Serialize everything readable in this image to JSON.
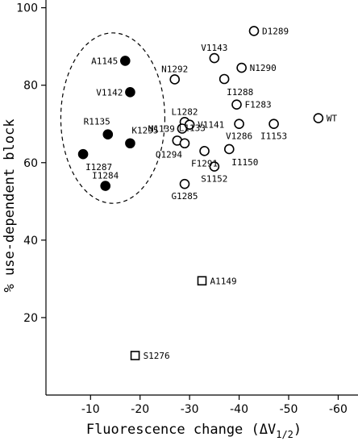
{
  "chart_data": {
    "type": "scatter",
    "title": "",
    "xlabel": "Fluorescence change (ΔV",
    "xlabel_sub": "1/2",
    "xlabel_close": ")",
    "ylabel": "% use-dependent block",
    "xlim": [
      -1,
      -64
    ],
    "ylim": [
      0,
      102
    ],
    "x_axis_reversed": true,
    "xticks": [
      -10,
      -20,
      -30,
      -40,
      -50,
      -60
    ],
    "yticks": [
      20,
      40,
      60,
      80,
      100
    ],
    "grid": false,
    "legend": "none",
    "marker_styles": {
      "filled-circle": {
        "fill": "#000000",
        "stroke": "#000000"
      },
      "open-circle": {
        "fill": "#ffffff",
        "stroke": "#000000"
      },
      "open-square": {
        "fill": "#ffffff",
        "stroke": "#000000"
      }
    },
    "highlight_region": {
      "shape": "ellipse",
      "style": "dashed",
      "center": [
        -14.5,
        71.5
      ],
      "radius_x": 10.5,
      "radius_y": 22
    },
    "points": [
      {
        "label": "A1145",
        "x": -17,
        "y": 86.3,
        "marker": "filled-circle",
        "label_side": "left"
      },
      {
        "label": "V1142",
        "x": -18,
        "y": 78.2,
        "marker": "filled-circle",
        "label_side": "left"
      },
      {
        "label": "R1135",
        "x": -13.5,
        "y": 67.3,
        "marker": "filled-circle",
        "label_side": "left-above"
      },
      {
        "label": "K1295",
        "x": -18,
        "y": 65,
        "marker": "filled-circle",
        "label_side": "right-above"
      },
      {
        "label": "I1287",
        "x": -8.5,
        "y": 62.2,
        "marker": "filled-circle",
        "label_side": "right-below"
      },
      {
        "label": "I1284",
        "x": -13,
        "y": 54,
        "marker": "filled-circle",
        "label_side": "above"
      },
      {
        "label": "D1289",
        "x": -43,
        "y": 94,
        "marker": "open-circle",
        "label_side": "right"
      },
      {
        "label": "V1143",
        "x": -35,
        "y": 87,
        "marker": "open-circle",
        "label_side": "above"
      },
      {
        "label": "N1290",
        "x": -40.5,
        "y": 84.5,
        "marker": "open-circle",
        "label_side": "right"
      },
      {
        "label": "N1292",
        "x": -27,
        "y": 81.5,
        "marker": "open-circle",
        "label_side": "above"
      },
      {
        "label": "I1288",
        "x": -37,
        "y": 81.6,
        "marker": "open-circle",
        "label_side": "right-below"
      },
      {
        "label": "F1283",
        "x": -39.5,
        "y": 75,
        "marker": "open-circle",
        "label_side": "right"
      },
      {
        "label": "L1282",
        "x": -29,
        "y": 70.5,
        "marker": "open-circle",
        "label_side": "above"
      },
      {
        "label": "M1139",
        "x": -28.5,
        "y": 68.8,
        "marker": "open-circle",
        "label_side": "left"
      },
      {
        "label": "V1141",
        "x": -30,
        "y": 69.8,
        "marker": "open-circle",
        "label_side": "right"
      },
      {
        "label": "V1286",
        "x": -40,
        "y": 70,
        "marker": "open-circle",
        "label_side": "below"
      },
      {
        "label": "I1153",
        "x": -47,
        "y": 70,
        "marker": "open-circle",
        "label_side": "below"
      },
      {
        "label": "WT",
        "x": -56,
        "y": 71.5,
        "marker": "open-circle",
        "label_side": "right"
      },
      {
        "label": "L1133",
        "x": -27.5,
        "y": 65.7,
        "marker": "open-circle",
        "label_side": "right-above"
      },
      {
        "label": "Q1294",
        "x": -29,
        "y": 65,
        "marker": "open-circle",
        "label_side": "left-below"
      },
      {
        "label": "F1291",
        "x": -33,
        "y": 63,
        "marker": "open-circle",
        "label_side": "below"
      },
      {
        "label": "I1150",
        "x": -38,
        "y": 63.5,
        "marker": "open-circle",
        "label_side": "right-below"
      },
      {
        "label": "S1152",
        "x": -35,
        "y": 59,
        "marker": "open-circle",
        "label_side": "below"
      },
      {
        "label": "G1285",
        "x": -29,
        "y": 54.5,
        "marker": "open-circle",
        "label_side": "below"
      },
      {
        "label": "A1149",
        "x": -32.5,
        "y": 29.5,
        "marker": "open-square",
        "label_side": "right"
      },
      {
        "label": "S1276",
        "x": -19,
        "y": 10.2,
        "marker": "open-square",
        "label_side": "right"
      }
    ]
  }
}
